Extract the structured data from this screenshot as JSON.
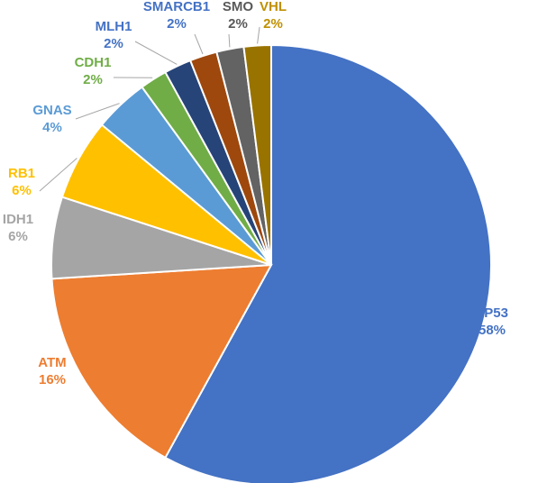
{
  "chart_data": {
    "type": "pie",
    "title": "",
    "slices": [
      {
        "name": "TP53",
        "value": 58,
        "label": "58%",
        "color": "#4472C4"
      },
      {
        "name": "ATM",
        "value": 16,
        "label": "16%",
        "color": "#ED7D31"
      },
      {
        "name": "IDH1",
        "value": 6,
        "label": "6%",
        "color": "#A5A5A5"
      },
      {
        "name": "RB1",
        "value": 6,
        "label": "6%",
        "color": "#FFC000"
      },
      {
        "name": "GNAS",
        "value": 4,
        "label": "4%",
        "color": "#5B9BD5"
      },
      {
        "name": "CDH1",
        "value": 2,
        "label": "2%",
        "color": "#70AD47"
      },
      {
        "name": "MLH1",
        "value": 2,
        "label": "2%",
        "color": "#264478"
      },
      {
        "name": "SMARCB1",
        "value": 2,
        "label": "2%",
        "color": "#9E480E"
      },
      {
        "name": "SMO",
        "value": 2,
        "label": "2%",
        "color": "#636363"
      },
      {
        "name": "VHL",
        "value": 2,
        "label": "2%",
        "color": "#997300"
      }
    ],
    "label_colors": {
      "TP53": "#4472C4",
      "ATM": "#ED7D31",
      "IDH1": "#A5A5A5",
      "RB1": "#FFC000",
      "GNAS": "#5B9BD5",
      "CDH1": "#70AD47",
      "MLH1": "#4472C4",
      "SMARCB1": "#4472C4",
      "SMO": "#595959",
      "VHL": "#BF9000"
    },
    "slice_border_color": "#ffffff",
    "leader_line_color": "#A6A6A6"
  }
}
